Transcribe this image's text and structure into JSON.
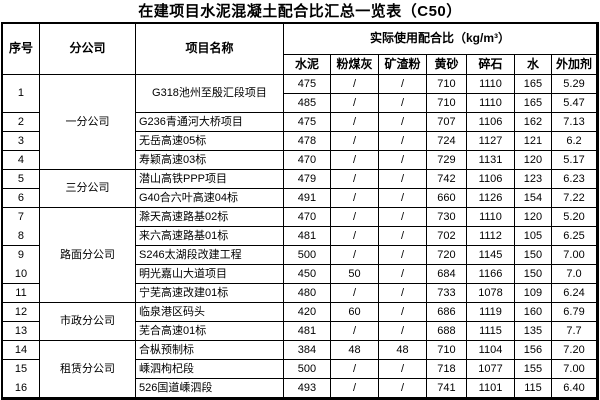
{
  "title": "在建项目水泥混凝土配合比汇总一览表（C50）",
  "colors": {
    "border": "#000000",
    "background": "#ffffff",
    "text": "#000000"
  },
  "table": {
    "headers": {
      "no": "序号",
      "branch": "分公司",
      "project": "项目名称",
      "mix_group": "实际使用配合比（kg/m³）",
      "mix_columns": [
        "水泥",
        "粉煤灰",
        "矿渣粉",
        "黄砂",
        "碎石",
        "水",
        "外加剂"
      ]
    },
    "rows": [
      {
        "no": {
          "text": "1",
          "span": 2
        },
        "branch": {
          "text": "一分公司",
          "span": 5
        },
        "project": {
          "text": "G318池州至殷汇段项目",
          "span": 2,
          "align": "center"
        },
        "mix": [
          "475",
          "/",
          "/",
          "710",
          "1110",
          "165",
          "5.29"
        ]
      },
      {
        "mix": [
          "485",
          "/",
          "/",
          "710",
          "1110",
          "165",
          "5.47"
        ]
      },
      {
        "no": {
          "text": "2"
        },
        "project": {
          "text": "G236青通河大桥项目"
        },
        "mix": [
          "475",
          "/",
          "/",
          "707",
          "1106",
          "162",
          "7.13"
        ]
      },
      {
        "no": {
          "text": "3"
        },
        "project": {
          "text": "无岳高速05标"
        },
        "mix": [
          "478",
          "/",
          "/",
          "724",
          "1127",
          "121",
          "6.2"
        ]
      },
      {
        "no": {
          "text": "4"
        },
        "project": {
          "text": "寿颖高速03标"
        },
        "mix": [
          "470",
          "/",
          "/",
          "729",
          "1131",
          "120",
          "5.17"
        ]
      },
      {
        "no": {
          "text": "5"
        },
        "branch": {
          "text": "三分公司",
          "span": 2
        },
        "project": {
          "text": "潜山高铁PPP项目"
        },
        "mix": [
          "479",
          "/",
          "/",
          "742",
          "1106",
          "123",
          "6.23"
        ]
      },
      {
        "no": {
          "text": "6"
        },
        "project": {
          "text": "G40合六叶高速04标"
        },
        "mix": [
          "491",
          "/",
          "/",
          "660",
          "1126",
          "154",
          "7.22"
        ]
      },
      {
        "no": {
          "text": "7",
          "divider": false
        },
        "branch": {
          "text": "路面分公司",
          "span": 5
        },
        "project": {
          "text": "滁天高速路基02标"
        },
        "mix": [
          "470",
          "/",
          "/",
          "730",
          "1110",
          "120",
          "5.20"
        ]
      },
      {
        "no": {
          "text": "8"
        },
        "project": {
          "text": "来六高速路基01标"
        },
        "mix": [
          "481",
          "/",
          "/",
          "702",
          "1112",
          "105",
          "6.25"
        ]
      },
      {
        "no": {
          "text": "9",
          "divider": false
        },
        "project": {
          "text": "S246太湖段改建工程"
        },
        "mix": [
          "500",
          "/",
          "/",
          "720",
          "1145",
          "150",
          "7.00"
        ]
      },
      {
        "no": {
          "text": "10"
        },
        "project": {
          "text": "明光嘉山大道项目"
        },
        "mix": [
          "450",
          "50",
          "/",
          "684",
          "1166",
          "150",
          "7.0"
        ]
      },
      {
        "no": {
          "text": "11"
        },
        "project": {
          "text": "宁芜高速改建01标"
        },
        "mix": [
          "480",
          "/",
          "/",
          "733",
          "1078",
          "109",
          "6.24"
        ]
      },
      {
        "no": {
          "text": "12"
        },
        "branch": {
          "text": "市政分公司",
          "span": 2
        },
        "project": {
          "text": "临泉港区码头"
        },
        "mix": [
          "420",
          "60",
          "/",
          "686",
          "1119",
          "160",
          "6.79"
        ]
      },
      {
        "no": {
          "text": "13"
        },
        "project": {
          "text": "芜合高速01标"
        },
        "mix": [
          "481",
          "/",
          "/",
          "688",
          "1115",
          "135",
          "7.7"
        ]
      },
      {
        "no": {
          "text": "14"
        },
        "branch": {
          "text": "租赁分公司",
          "span": 3
        },
        "project": {
          "text": "合枞预制标"
        },
        "mix": [
          "384",
          "48",
          "48",
          "710",
          "1104",
          "156",
          "7.20"
        ]
      },
      {
        "no": {
          "text": "15",
          "divider": false
        },
        "project": {
          "text": "嵊泗枸杞段"
        },
        "mix": [
          "500",
          "/",
          "/",
          "718",
          "1077",
          "155",
          "7.00"
        ]
      },
      {
        "no": {
          "text": "16"
        },
        "project": {
          "text": "526国道嵊泗段"
        },
        "mix": [
          "493",
          "/",
          "/",
          "741",
          "1101",
          "115",
          "6.40"
        ]
      }
    ]
  }
}
